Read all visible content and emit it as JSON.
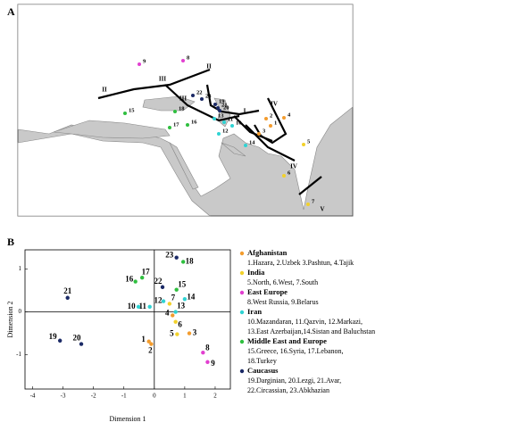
{
  "map": {
    "panel_label": "A",
    "boundary_labels": [
      "I",
      "II",
      "II",
      "III",
      "III",
      "IV",
      "IV",
      "V"
    ]
  },
  "chart_data": {
    "type": "scatter",
    "panel_label": "B",
    "xlabel": "Dimension 1",
    "ylabel": "Dimension 2",
    "xlim": [
      -4.25,
      2.5
    ],
    "ylim": [
      -1.8,
      1.45
    ],
    "xticks": [
      -4,
      -3,
      -2,
      -1,
      0,
      1,
      2
    ],
    "yticks": [
      -1,
      0,
      1
    ],
    "series": [
      {
        "name": "Afghanistan",
        "color": "#f39c2e",
        "x": [
          -0.18,
          -0.1,
          1.15,
          0.6
        ],
        "values": [
          -0.69,
          -0.75,
          -0.5,
          -0.08
        ],
        "point_labels": [
          "1",
          "2",
          "3",
          "4"
        ],
        "description": [
          "1.Hazara, 2.Uzbek 3.Pashtun, 4.Tajik"
        ]
      },
      {
        "name": "India",
        "color": "#f2d12a",
        "x": [
          0.75,
          0.7,
          0.5
        ],
        "values": [
          -0.52,
          -0.23,
          0.19
        ],
        "point_labels": [
          "5",
          "6",
          "7"
        ],
        "description": [
          "5.North, 6.West, 7.South"
        ]
      },
      {
        "name": "East Europe",
        "color": "#e23fd0",
        "x": [
          1.6,
          1.75
        ],
        "values": [
          -0.95,
          -1.17
        ],
        "point_labels": [
          "8",
          "9"
        ],
        "description": [
          "8.West Russia, 9.Belarus"
        ]
      },
      {
        "name": "Iran",
        "color": "#2fd3d3",
        "x": [
          -0.52,
          -0.15,
          0.3,
          0.7,
          1.0
        ],
        "values": [
          0.12,
          0.12,
          0.25,
          0.0,
          0.3
        ],
        "point_labels": [
          "10",
          "11",
          "12",
          "13",
          "14"
        ],
        "description": [
          "10.Mazandaran, 11.Qazvin, 12.Markazi,",
          "13.East Azerbaijan,14.Sistan and Baluchstan"
        ]
      },
      {
        "name": "Middle East and Europe",
        "color": "#2fbf3f",
        "x": [
          0.73,
          -0.62,
          -0.4,
          0.95
        ],
        "values": [
          0.52,
          0.71,
          0.8,
          1.17
        ],
        "point_labels": [
          "15",
          "16",
          "17",
          "18"
        ],
        "description": [
          "15.Greece, 16.Syria, 17.Lebanon,",
          "18.Turkey"
        ]
      },
      {
        "name": "Caucasus",
        "color": "#1b2a66",
        "x": [
          -3.1,
          -2.4,
          -2.85,
          0.27,
          0.73
        ],
        "values": [
          -0.67,
          -0.75,
          0.33,
          0.58,
          1.27
        ],
        "point_labels": [
          "19",
          "20",
          "21",
          "22",
          "23"
        ],
        "description": [
          "19.Darginian, 20.Lezgi, 21.Avar,",
          "22.Circassian, 23.Abkhazian"
        ]
      }
    ]
  }
}
